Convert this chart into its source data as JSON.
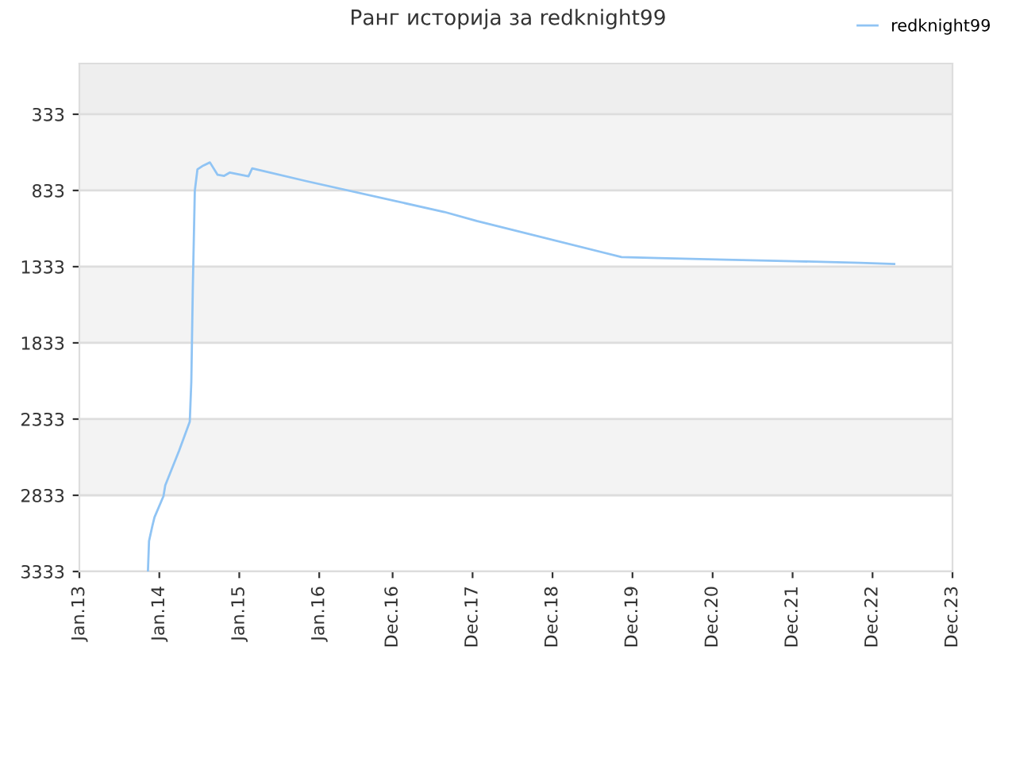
{
  "chart_data": {
    "type": "line",
    "title": "Ранг историја за redknight99",
    "x": [
      "2013-11-10",
      "2013-11-15",
      "2013-12-01",
      "2013-12-10",
      "2014-01-20",
      "2014-01-28",
      "2014-04-01",
      "2014-05-20",
      "2014-05-27",
      "2014-06-03",
      "2014-06-12",
      "2014-06-24",
      "2014-07-20",
      "2014-08-20",
      "2014-09-24",
      "2014-10-24",
      "2014-11-18",
      "2015-02-12",
      "2015-03-01",
      "2015-11-04",
      "2017-07-25",
      "2017-12-20",
      "2019-10-12",
      "2020-03-28",
      "2021-01-25",
      "2021-12-07",
      "2022-10-04",
      "2023-03-10"
    ],
    "series": [
      {
        "name": "redknight99",
        "color": "#90c4f4",
        "values": [
          3333,
          3133,
          3029,
          2977,
          2838,
          2768,
          2541,
          2350,
          2088,
          1462,
          835,
          695,
          670,
          649,
          730,
          737,
          716,
          740,
          688,
          772,
          974,
          1033,
          1270,
          1276,
          1287,
          1297,
          1308,
          1315
        ]
      }
    ],
    "xlim": [
      "2013-01-01",
      "2023-12-01"
    ],
    "xticks": [
      {
        "value": "2013-01-01",
        "label": "Jan.13"
      },
      {
        "value": "2014-01-01",
        "label": "Jan.14"
      },
      {
        "value": "2015-01-01",
        "label": "Jan.15"
      },
      {
        "value": "2016-01-01",
        "label": "Jan.16"
      },
      {
        "value": "2016-12-01",
        "label": "Dec.16"
      },
      {
        "value": "2017-12-01",
        "label": "Dec.17"
      },
      {
        "value": "2018-12-01",
        "label": "Dec.18"
      },
      {
        "value": "2019-12-01",
        "label": "Dec.19"
      },
      {
        "value": "2020-12-01",
        "label": "Dec.20"
      },
      {
        "value": "2021-12-01",
        "label": "Dec.21"
      },
      {
        "value": "2022-12-01",
        "label": "Dec.22"
      },
      {
        "value": "2023-12-01",
        "label": "Dec.23"
      }
    ],
    "ylim": [
      3333,
      0
    ],
    "yticks": [
      333,
      833,
      1333,
      1833,
      2333,
      2833,
      3333
    ],
    "bands": [
      {
        "axis": "y",
        "from": 0,
        "to": 333,
        "color": "#eeeeee"
      },
      {
        "axis": "y",
        "from": 333,
        "to": 833,
        "color": "#f3f3f3"
      },
      {
        "axis": "y",
        "from": 1333,
        "to": 1833,
        "color": "#f3f3f3"
      },
      {
        "axis": "y",
        "from": 2333,
        "to": 2833,
        "color": "#f3f3f3"
      }
    ],
    "grid": "y",
    "legend": "top right",
    "marker": "none",
    "line_style": "solid"
  }
}
